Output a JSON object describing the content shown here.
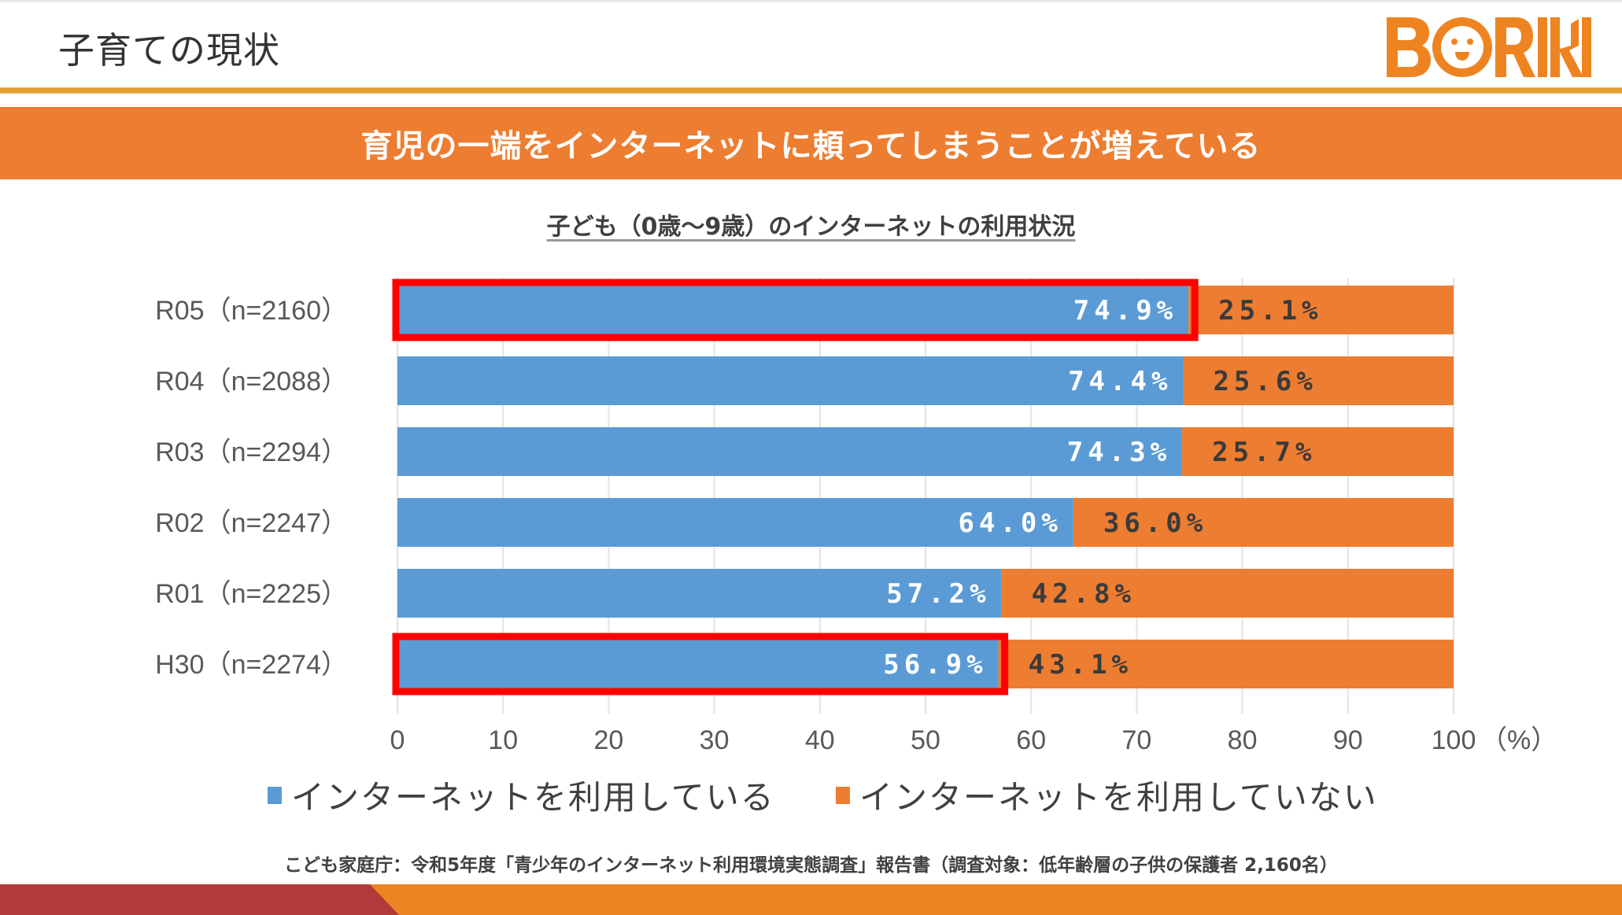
{
  "page": {
    "title": "子育ての現状",
    "logo_text": "BORIKI",
    "banner": "育児の一端をインターネットに頼ってしまうことが増えている",
    "source": "こども家庭庁：令和5年度「青少年のインターネット利用環境実態調査」報告書（調査対象：低年齢層の子供の保護者 2,160名）"
  },
  "colors": {
    "brand_orange": "#ed7d31",
    "series_used": "#5b9bd5",
    "series_not_used": "#ed7d31",
    "highlight": "#ff0000",
    "footer_red": "#b33a3a",
    "footer_orange": "#ee8421"
  },
  "chart_data": {
    "type": "bar",
    "orientation": "horizontal",
    "stacked": true,
    "title": "子ども（0歳～9歳）のインターネットの利用状況",
    "categories": [
      "R05（n=2160）",
      "R04（n=2088）",
      "R03（n=2294）",
      "R02（n=2247）",
      "R01（n=2225）",
      "H30（n=2274）"
    ],
    "series": [
      {
        "name": "インターネットを利用している",
        "values": [
          74.9,
          74.4,
          74.3,
          64.0,
          57.2,
          56.9
        ],
        "labels": [
          "74.9%",
          "74.4%",
          "74.3%",
          "64.0%",
          "57.2%",
          "56.9%"
        ]
      },
      {
        "name": "インターネットを利用していない",
        "values": [
          25.1,
          25.6,
          25.7,
          36.0,
          42.8,
          43.1
        ],
        "labels": [
          "25.1%",
          "25.6%",
          "25.7%",
          "36.0%",
          "42.8%",
          "43.1%"
        ]
      }
    ],
    "xlim": [
      0,
      100
    ],
    "xticks": [
      "0",
      "10",
      "20",
      "30",
      "40",
      "50",
      "60",
      "70",
      "80",
      "90",
      "100"
    ],
    "xunit": "（%）",
    "grid": true,
    "legend": "bottom",
    "highlighted_categories": [
      "R05（n=2160）",
      "H30（n=2274）"
    ]
  }
}
